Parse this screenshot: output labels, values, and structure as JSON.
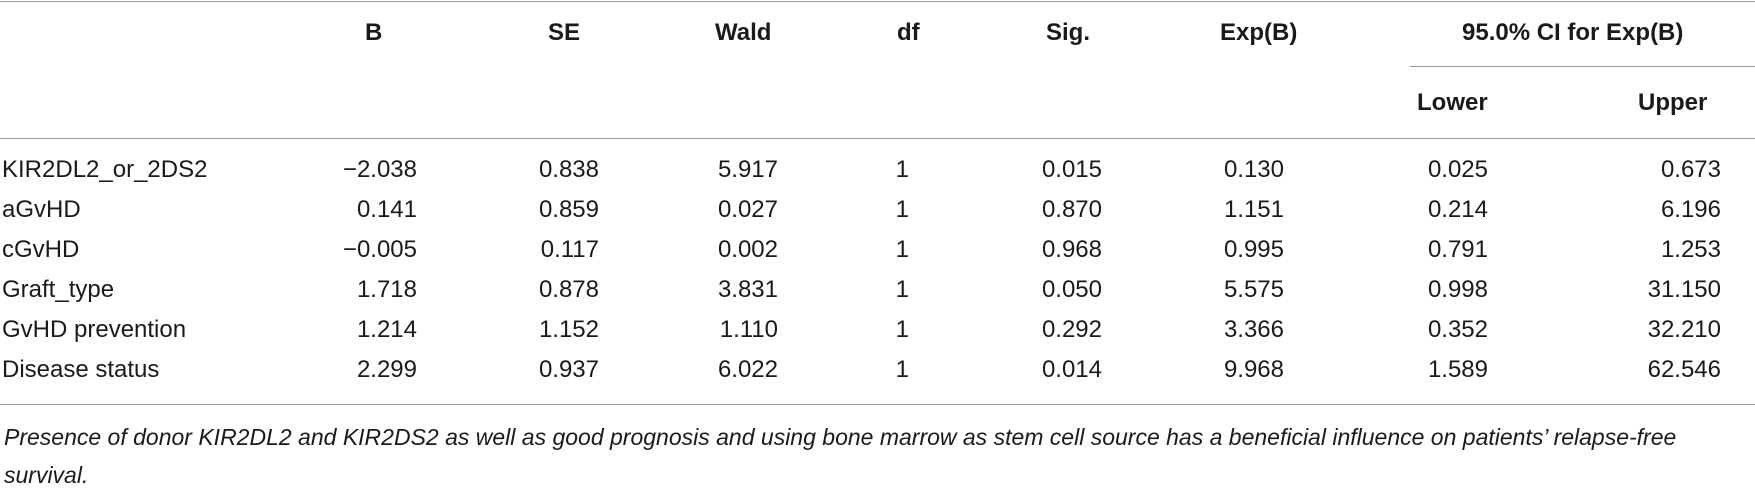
{
  "table": {
    "headers": {
      "b": "B",
      "se": "SE",
      "wald": "Wald",
      "df": "df",
      "sig": "Sig.",
      "expb": "Exp(B)",
      "ci": "95.0% CI for Exp(B)",
      "lower": "Lower",
      "upper": "Upper"
    },
    "rows": [
      {
        "label": "KIR2DL2_or_2DS2",
        "b": "−2.038",
        "se": "0.838",
        "wald": "5.917",
        "df": "1",
        "sig": "0.015",
        "expb": "0.130",
        "lower": "0.025",
        "upper": "0.673"
      },
      {
        "label": "aGvHD",
        "b": "0.141",
        "se": "0.859",
        "wald": "0.027",
        "df": "1",
        "sig": "0.870",
        "expb": "1.151",
        "lower": "0.214",
        "upper": "6.196"
      },
      {
        "label": "cGvHD",
        "b": "−0.005",
        "se": "0.117",
        "wald": "0.002",
        "df": "1",
        "sig": "0.968",
        "expb": "0.995",
        "lower": "0.791",
        "upper": "1.253"
      },
      {
        "label": "Graft_type",
        "b": "1.718",
        "se": "0.878",
        "wald": "3.831",
        "df": "1",
        "sig": "0.050",
        "expb": "5.575",
        "lower": "0.998",
        "upper": "31.150"
      },
      {
        "label": "GvHD prevention",
        "b": "1.214",
        "se": "1.152",
        "wald": "1.110",
        "df": "1",
        "sig": "0.292",
        "expb": "3.366",
        "lower": "0.352",
        "upper": "32.210"
      },
      {
        "label": "Disease status",
        "b": "2.299",
        "se": "0.937",
        "wald": "6.022",
        "df": "1",
        "sig": "0.014",
        "expb": "9.968",
        "lower": "1.589",
        "upper": "62.546"
      }
    ]
  },
  "footnote": "Presence of donor KIR2DL2 and KIR2DS2 as well as good prognosis and using bone marrow as stem cell source has a beneficial influence on patients’ relapse-free survival."
}
